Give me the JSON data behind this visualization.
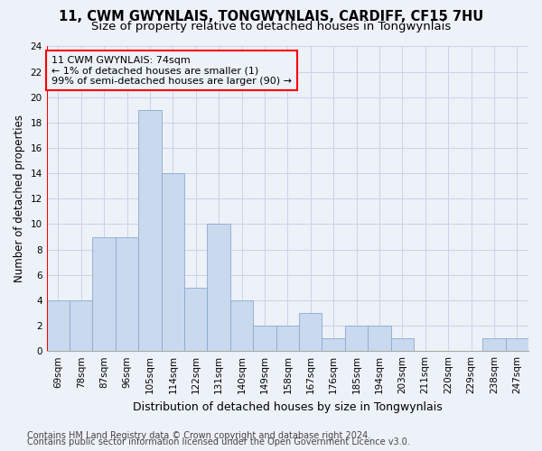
{
  "title": "11, CWM GWYNLAIS, TONGWYNLAIS, CARDIFF, CF15 7HU",
  "subtitle": "Size of property relative to detached houses in Tongwynlais",
  "xlabel": "Distribution of detached houses by size in Tongwynlais",
  "ylabel": "Number of detached properties",
  "categories": [
    "69sqm",
    "78sqm",
    "87sqm",
    "96sqm",
    "105sqm",
    "114sqm",
    "122sqm",
    "131sqm",
    "140sqm",
    "149sqm",
    "158sqm",
    "167sqm",
    "176sqm",
    "185sqm",
    "194sqm",
    "203sqm",
    "211sqm",
    "220sqm",
    "229sqm",
    "238sqm",
    "247sqm"
  ],
  "values": [
    4,
    4,
    9,
    9,
    19,
    14,
    5,
    10,
    4,
    2,
    2,
    3,
    1,
    2,
    2,
    1,
    0,
    0,
    0,
    1,
    1
  ],
  "bar_color": "#c9d9ee",
  "bar_edge_color": "#8aaace",
  "annotation_line1": "11 CWM GWYNLAIS: 74sqm",
  "annotation_line2": "← 1% of detached houses are smaller (1)",
  "annotation_line3": "99% of semi-detached houses are larger (90) →",
  "ylim": [
    0,
    24
  ],
  "yticks": [
    0,
    2,
    4,
    6,
    8,
    10,
    12,
    14,
    16,
    18,
    20,
    22,
    24
  ],
  "grid_color": "#c8d4e8",
  "background_color": "#edf1f8",
  "footer_line1": "Contains HM Land Registry data © Crown copyright and database right 2024.",
  "footer_line2": "Contains public sector information licensed under the Open Government Licence v3.0.",
  "title_fontsize": 10.5,
  "subtitle_fontsize": 9.5,
  "xlabel_fontsize": 9,
  "ylabel_fontsize": 8.5,
  "tick_fontsize": 7.5,
  "annotation_fontsize": 8,
  "footer_fontsize": 7
}
